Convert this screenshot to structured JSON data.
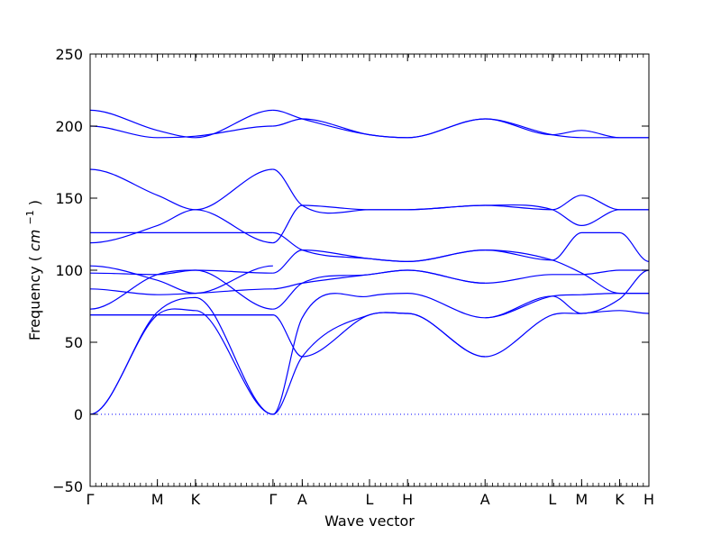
{
  "chart_data": {
    "type": "line",
    "title": "",
    "xlabel": "Wave vector",
    "ylabel": "Frequency",
    "ylabel_unit_text": "cm",
    "ylabel_unit_exp": "−1",
    "ylim": [
      -50,
      250
    ],
    "yticks": [
      -50,
      0,
      50,
      100,
      150,
      200,
      250
    ],
    "xlim": [
      0,
      11.46
    ],
    "xticks": [
      {
        "label": "Γ",
        "x": 0
      },
      {
        "label": "M",
        "x": 1.38
      },
      {
        "label": "K",
        "x": 2.16
      },
      {
        "label": "Γ",
        "x": 3.75
      },
      {
        "label": "A",
        "x": 4.35
      },
      {
        "label": "L",
        "x": 5.73
      },
      {
        "label": "H",
        "x": 6.51
      },
      {
        "label": "A",
        "x": 8.1
      },
      {
        "label": "L",
        "x": 9.48
      },
      {
        "label": "M",
        "x": 10.08
      },
      {
        "label": "K",
        "x": 10.86
      },
      {
        "label": "H",
        "x": 11.46
      }
    ],
    "zero_line": 0,
    "line_color": "#0000ff",
    "series": [
      {
        "x": [
          0,
          1.38,
          2.16,
          3.75
        ],
        "y": [
          0,
          69,
          72,
          0
        ]
      },
      {
        "x": [
          0,
          1.38,
          2.16,
          3.75
        ],
        "y": [
          0,
          71,
          81,
          0
        ]
      },
      {
        "x": [
          0,
          1.38,
          2.16,
          3.75
        ],
        "y": [
          69,
          69,
          69,
          69
        ]
      },
      {
        "x": [
          0,
          1.38,
          2.16,
          3.75
        ],
        "y": [
          69,
          69,
          69,
          69
        ]
      },
      {
        "x": [
          0,
          1.38,
          2.16,
          3.75
        ],
        "y": [
          73,
          97,
          100,
          73
        ]
      },
      {
        "x": [
          0,
          1.38,
          2.16,
          3.75
        ],
        "y": [
          87,
          83,
          84,
          87
        ]
      },
      {
        "x": [
          0,
          1.38,
          2.16,
          3.75
        ],
        "y": [
          98,
          97,
          100,
          98
        ]
      },
      {
        "x": [
          0,
          1.38,
          2.16,
          3.75
        ],
        "y": [
          103,
          93,
          84,
          103
        ]
      },
      {
        "x": [
          0,
          1.38,
          2.16,
          3.75
        ],
        "y": [
          119,
          131,
          142,
          119
        ]
      },
      {
        "x": [
          0,
          1.38,
          2.16,
          3.75
        ],
        "y": [
          126,
          126,
          126,
          126
        ]
      },
      {
        "x": [
          0,
          1.38,
          2.16,
          3.75
        ],
        "y": [
          170,
          152,
          142,
          170
        ]
      },
      {
        "x": [
          0,
          1.38,
          2.16,
          3.75
        ],
        "y": [
          200,
          192,
          193,
          200
        ]
      },
      {
        "x": [
          0,
          1.38,
          2.16,
          3.75
        ],
        "y": [
          211,
          197,
          192,
          211
        ]
      },
      {
        "x": [
          3.75,
          4.35,
          5.73,
          6.51,
          8.1
        ],
        "y": [
          0,
          40,
          69,
          70,
          40
        ]
      },
      {
        "x": [
          3.75,
          4.35,
          5.73,
          6.51,
          8.1
        ],
        "y": [
          0,
          67,
          82,
          84,
          67
        ]
      },
      {
        "x": [
          3.75,
          4.35,
          5.73,
          6.51,
          8.1
        ],
        "y": [
          69,
          40,
          69,
          70,
          40
        ]
      },
      {
        "x": [
          3.75,
          4.35,
          5.73,
          6.51,
          8.1
        ],
        "y": [
          73,
          91,
          97,
          100,
          91
        ]
      },
      {
        "x": [
          3.75,
          4.35,
          5.73,
          6.51,
          8.1
        ],
        "y": [
          87,
          91,
          97,
          100,
          91
        ]
      },
      {
        "x": [
          3.75,
          4.35,
          5.73,
          6.51,
          8.1
        ],
        "y": [
          98,
          114,
          108,
          106,
          114
        ]
      },
      {
        "x": [
          3.75,
          4.35,
          5.73,
          6.51,
          8.1
        ],
        "y": [
          119,
          145,
          142,
          142,
          145
        ]
      },
      {
        "x": [
          3.75,
          4.35,
          5.73,
          6.51,
          8.1
        ],
        "y": [
          126,
          114,
          108,
          106,
          114
        ]
      },
      {
        "x": [
          3.75,
          4.35,
          5.73,
          6.51,
          8.1
        ],
        "y": [
          170,
          145,
          142,
          142,
          145
        ]
      },
      {
        "x": [
          3.75,
          4.35,
          5.73,
          6.51,
          8.1
        ],
        "y": [
          200,
          205,
          194,
          192,
          205
        ]
      },
      {
        "x": [
          3.75,
          4.35,
          5.73,
          6.51,
          8.1
        ],
        "y": [
          211,
          205,
          194,
          192,
          205
        ]
      },
      {
        "x": [
          8.1,
          9.48,
          10.08,
          10.86,
          11.46
        ],
        "y": [
          40,
          69,
          70,
          72,
          70
        ]
      },
      {
        "x": [
          8.1,
          9.48,
          10.08,
          10.86,
          11.46
        ],
        "y": [
          67,
          82,
          70,
          80,
          100
        ]
      },
      {
        "x": [
          8.1,
          9.48,
          10.08,
          10.86,
          11.46
        ],
        "y": [
          67,
          82,
          83,
          84,
          84
        ]
      },
      {
        "x": [
          8.1,
          9.48,
          10.08,
          10.86,
          11.46
        ],
        "y": [
          91,
          97,
          97,
          100,
          100
        ]
      },
      {
        "x": [
          8.1,
          9.48,
          10.08,
          10.86,
          11.46
        ],
        "y": [
          114,
          107,
          126,
          126,
          106
        ]
      },
      {
        "x": [
          8.1,
          9.48,
          10.08,
          10.86,
          11.46
        ],
        "y": [
          114,
          107,
          98,
          84,
          84
        ]
      },
      {
        "x": [
          8.1,
          9.48,
          10.08,
          10.86,
          11.46
        ],
        "y": [
          145,
          142,
          152,
          142,
          142
        ]
      },
      {
        "x": [
          8.1,
          9.48,
          10.08,
          10.86,
          11.46
        ],
        "y": [
          145,
          142,
          131,
          142,
          142
        ]
      },
      {
        "x": [
          8.1,
          9.48,
          10.08,
          10.86,
          11.46
        ],
        "y": [
          205,
          194,
          197,
          192,
          192
        ]
      },
      {
        "x": [
          8.1,
          9.48,
          10.08,
          10.86,
          11.46
        ],
        "y": [
          205,
          194,
          192,
          192,
          192
        ]
      }
    ]
  }
}
